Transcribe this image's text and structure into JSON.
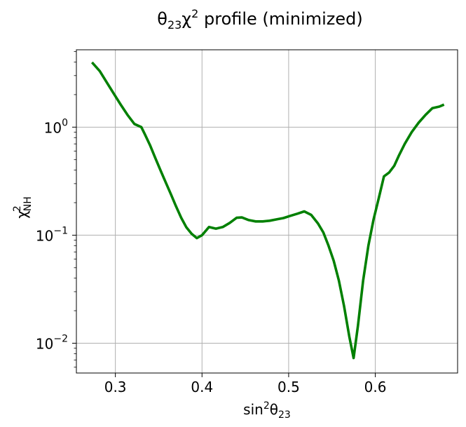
{
  "chart_data": {
    "type": "line",
    "title": {
      "theta": "θ",
      "theta_sub": "23",
      "chi": "χ",
      "chi_sup": "2",
      "rest": " profile (minimized)"
    },
    "xlabel": {
      "main": "sin",
      "sup": "2",
      "theta": "θ",
      "sub": "23"
    },
    "ylabel": {
      "chi": "χ",
      "sup": "2",
      "sub": "NH"
    },
    "xlim": [
      0.255,
      0.695
    ],
    "ylim": [
      0.0053,
      5.2
    ],
    "yscale": "log",
    "grid": true,
    "xticks": [
      0.3,
      0.4,
      0.5,
      0.6
    ],
    "xtick_labels": [
      "0.3",
      "0.4",
      "0.5",
      "0.6"
    ],
    "yticks": [
      {
        "value": 0.01,
        "base": "10",
        "exp": "−2"
      },
      {
        "value": 0.1,
        "base": "10",
        "exp": "−1"
      },
      {
        "value": 1,
        "base": "10",
        "exp": "0"
      }
    ],
    "series": [
      {
        "color": "#008000",
        "x": [
          0.274,
          0.282,
          0.29,
          0.298,
          0.306,
          0.314,
          0.322,
          0.33,
          0.334,
          0.34,
          0.346,
          0.352,
          0.358,
          0.364,
          0.37,
          0.376,
          0.382,
          0.388,
          0.394,
          0.4,
          0.408,
          0.416,
          0.424,
          0.432,
          0.44,
          0.446,
          0.454,
          0.462,
          0.47,
          0.478,
          0.486,
          0.494,
          0.502,
          0.51,
          0.518,
          0.526,
          0.534,
          0.54,
          0.546,
          0.552,
          0.558,
          0.564,
          0.57,
          0.575,
          0.58,
          0.586,
          0.592,
          0.598,
          0.604,
          0.61,
          0.616,
          0.622,
          0.627,
          0.634,
          0.642,
          0.65,
          0.658,
          0.666,
          0.674,
          0.678
        ],
        "y": [
          3.9,
          3.3,
          2.6,
          2.05,
          1.62,
          1.3,
          1.07,
          1.0,
          0.86,
          0.68,
          0.52,
          0.4,
          0.31,
          0.24,
          0.185,
          0.145,
          0.118,
          0.103,
          0.094,
          0.1,
          0.119,
          0.115,
          0.119,
          0.13,
          0.145,
          0.146,
          0.138,
          0.134,
          0.134,
          0.136,
          0.14,
          0.144,
          0.151,
          0.158,
          0.166,
          0.154,
          0.128,
          0.106,
          0.08,
          0.058,
          0.038,
          0.022,
          0.0115,
          0.0073,
          0.0145,
          0.038,
          0.08,
          0.14,
          0.22,
          0.35,
          0.38,
          0.44,
          0.54,
          0.7,
          0.9,
          1.1,
          1.3,
          1.5,
          1.55,
          1.6
        ]
      }
    ]
  }
}
